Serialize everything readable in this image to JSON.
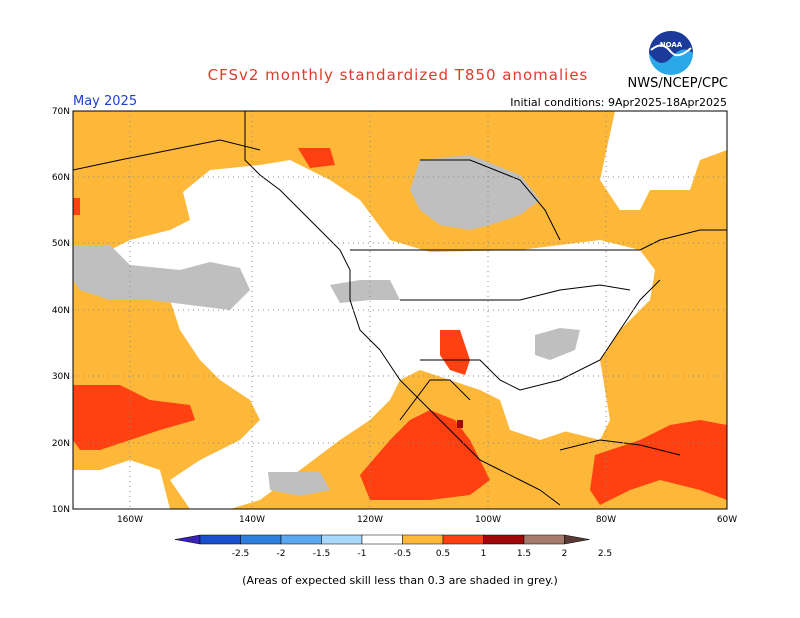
{
  "title": "CFSv2 monthly standardized T850 anomalies",
  "agency": "NWS/NCEP/CPC",
  "logo_text": "NOAA",
  "valid_month": "May 2025",
  "initial_conditions": "Initial conditions: 9Apr2025-18Apr2025",
  "footnote": "(Areas of expected skill less than 0.3 are shaded in grey.)",
  "map": {
    "lat_labels": [
      "70N",
      "60N",
      "50N",
      "40N",
      "30N",
      "20N",
      "10N"
    ],
    "lon_labels": [
      "160W",
      "140W",
      "120W",
      "100W",
      "80W",
      "60W"
    ]
  },
  "legend": {
    "labels": [
      "-2.5",
      "-2",
      "-1.5",
      "-1",
      "-0.5",
      "0.5",
      "1",
      "1.5",
      "2",
      "2.5"
    ],
    "colors": [
      "#3a20b8",
      "#1a50d0",
      "#2e7ee0",
      "#5aa8f0",
      "#a8d8fa",
      "#ffffff",
      "#fdb83a",
      "#ff4010",
      "#a0080a",
      "#a87a6e",
      "#5a3a34"
    ]
  }
}
